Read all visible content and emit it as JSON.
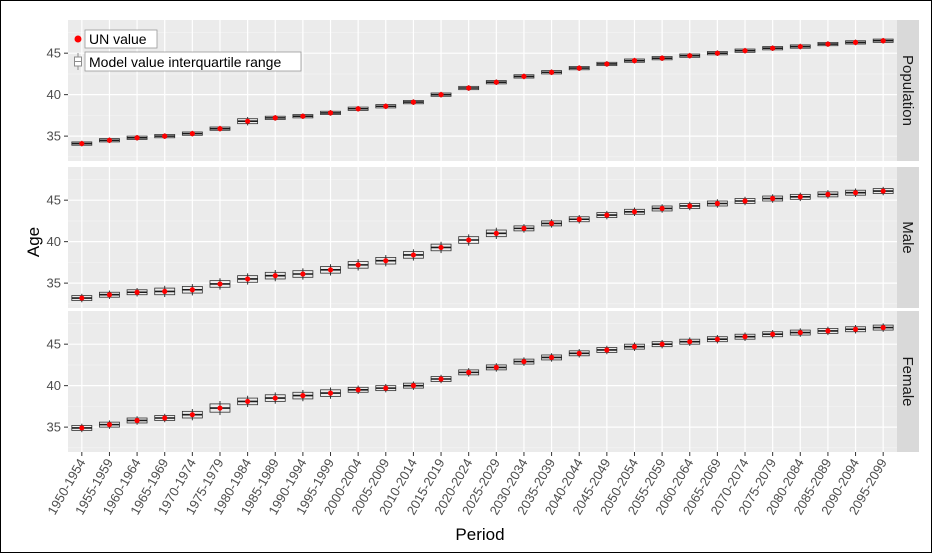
{
  "chart_data": {
    "type": "scatter",
    "title": "",
    "xlabel": "Period",
    "ylabel": "Age",
    "categories": [
      "1950-1954",
      "1955-1959",
      "1960-1964",
      "1965-1969",
      "1970-1974",
      "1975-1979",
      "1980-1984",
      "1985-1989",
      "1990-1994",
      "1995-1999",
      "2000-2004",
      "2005-2009",
      "2010-2014",
      "2015-2019",
      "2020-2024",
      "2025-2029",
      "2030-2034",
      "2035-2039",
      "2040-2044",
      "2045-2049",
      "2050-2054",
      "2055-2059",
      "2060-2064",
      "2065-2069",
      "2070-2074",
      "2075-2079",
      "2080-2084",
      "2085-2089",
      "2090-2094",
      "2095-2099"
    ],
    "ylim": [
      32,
      49
    ],
    "yticks": [
      35,
      40,
      45
    ],
    "grid": true,
    "legend": {
      "position": "top-left",
      "entries": [
        "UN value",
        "Model value interquartile range"
      ]
    },
    "panels": [
      {
        "name": "Population",
        "un_values": [
          34.1,
          34.5,
          34.8,
          35.0,
          35.3,
          35.9,
          36.8,
          37.2,
          37.4,
          37.8,
          38.3,
          38.6,
          39.1,
          40.0,
          40.8,
          41.5,
          42.2,
          42.7,
          43.2,
          43.7,
          44.1,
          44.4,
          44.7,
          45.0,
          45.3,
          45.6,
          45.8,
          46.1,
          46.3,
          46.5
        ],
        "iqr_low": [
          33.9,
          34.3,
          34.6,
          34.8,
          35.1,
          35.7,
          36.5,
          37.0,
          37.2,
          37.6,
          38.1,
          38.4,
          38.9,
          39.8,
          40.6,
          41.3,
          42.0,
          42.5,
          43.0,
          43.5,
          43.9,
          44.2,
          44.5,
          44.8,
          45.1,
          45.4,
          45.6,
          45.9,
          46.1,
          46.3
        ],
        "iqr_high": [
          34.3,
          34.7,
          35.0,
          35.2,
          35.5,
          36.1,
          37.1,
          37.4,
          37.6,
          38.0,
          38.5,
          38.8,
          39.3,
          40.2,
          41.0,
          41.7,
          42.4,
          42.9,
          43.4,
          43.9,
          44.3,
          44.6,
          44.9,
          45.2,
          45.5,
          45.8,
          46.0,
          46.3,
          46.5,
          46.7
        ]
      },
      {
        "name": "Male",
        "un_values": [
          33.2,
          33.6,
          33.9,
          34.0,
          34.2,
          34.9,
          35.5,
          35.9,
          36.1,
          36.6,
          37.2,
          37.7,
          38.4,
          39.3,
          40.2,
          41.0,
          41.6,
          42.2,
          42.7,
          43.2,
          43.6,
          44.0,
          44.3,
          44.6,
          44.9,
          45.2,
          45.4,
          45.7,
          45.9,
          46.1
        ],
        "iqr_low": [
          32.9,
          33.3,
          33.6,
          33.6,
          33.8,
          34.5,
          35.1,
          35.5,
          35.7,
          36.2,
          36.8,
          37.3,
          38.0,
          38.9,
          39.8,
          40.6,
          41.3,
          41.9,
          42.4,
          42.9,
          43.3,
          43.7,
          44.0,
          44.3,
          44.6,
          44.9,
          45.1,
          45.4,
          45.6,
          45.8
        ],
        "iqr_high": [
          33.5,
          33.9,
          34.2,
          34.4,
          34.6,
          35.3,
          35.9,
          36.3,
          36.5,
          37.0,
          37.6,
          38.1,
          38.8,
          39.7,
          40.6,
          41.4,
          41.9,
          42.5,
          43.0,
          43.5,
          43.9,
          44.3,
          44.6,
          44.9,
          45.2,
          45.5,
          45.7,
          46.0,
          46.2,
          46.4
        ]
      },
      {
        "name": "Female",
        "un_values": [
          34.9,
          35.3,
          35.8,
          36.1,
          36.5,
          37.3,
          38.1,
          38.5,
          38.8,
          39.1,
          39.5,
          39.7,
          40.0,
          40.8,
          41.6,
          42.2,
          42.9,
          43.4,
          43.9,
          44.3,
          44.7,
          45.0,
          45.3,
          45.6,
          45.9,
          46.2,
          46.4,
          46.6,
          46.8,
          47.0
        ],
        "iqr_low": [
          34.6,
          35.0,
          35.5,
          35.8,
          36.1,
          36.8,
          37.7,
          38.1,
          38.4,
          38.7,
          39.2,
          39.4,
          39.7,
          40.5,
          41.3,
          41.9,
          42.6,
          43.1,
          43.6,
          44.0,
          44.4,
          44.7,
          45.0,
          45.3,
          45.6,
          45.9,
          46.1,
          46.3,
          46.5,
          46.7
        ],
        "iqr_high": [
          35.2,
          35.6,
          36.1,
          36.4,
          36.9,
          37.8,
          38.5,
          38.9,
          39.2,
          39.5,
          39.8,
          40.0,
          40.3,
          41.1,
          41.9,
          42.5,
          43.2,
          43.7,
          44.2,
          44.6,
          45.0,
          45.3,
          45.6,
          45.9,
          46.2,
          46.5,
          46.7,
          46.9,
          47.1,
          47.3
        ]
      }
    ]
  }
}
